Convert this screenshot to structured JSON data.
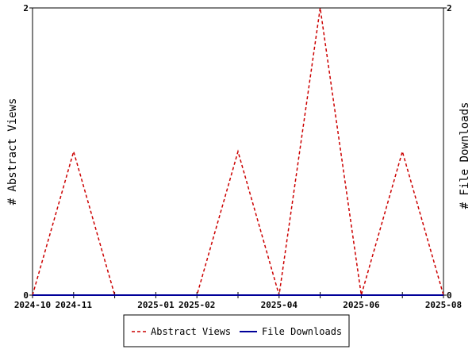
{
  "chart_data": {
    "type": "line",
    "x": [
      "2024-10",
      "2024-11",
      "2024-12",
      "2025-01",
      "2025-02",
      "2025-03",
      "2025-04",
      "2025-05",
      "2025-06",
      "2025-07",
      "2025-08"
    ],
    "x_tick_labels": [
      "2024-10",
      "2024-11",
      "2025-01",
      "2025-02",
      "2025-04",
      "2025-06",
      "2025-08"
    ],
    "series": [
      {
        "name": "Abstract Views",
        "values": [
          0,
          1,
          0,
          0,
          0,
          1,
          0,
          2,
          0,
          1,
          0
        ],
        "color": "#cc0000",
        "dash": "dashed",
        "axis": "left"
      },
      {
        "name": "File Downloads",
        "values": [
          0,
          0,
          0,
          0,
          0,
          0,
          0,
          0,
          0,
          0,
          0
        ],
        "color": "#000099",
        "dash": "solid",
        "axis": "right"
      }
    ],
    "ylabel_left": "# Abstract Views",
    "ylabel_right": "# File Downloads",
    "ylim_left": [
      0,
      2
    ],
    "ylim_right": [
      0,
      2
    ],
    "y_ticks_left": [
      "0",
      "2"
    ],
    "y_ticks_right": [
      "0",
      "2"
    ],
    "legend_position": "bottom-center",
    "grid": false
  }
}
